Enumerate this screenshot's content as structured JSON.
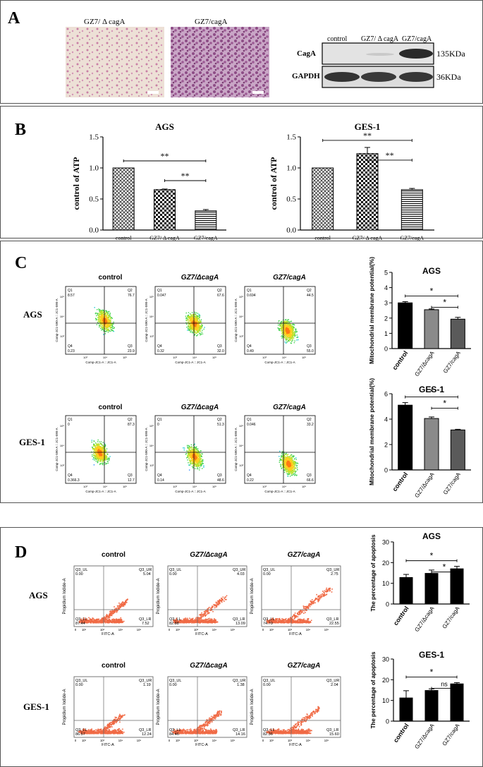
{
  "panelA": {
    "label": "A",
    "image_labels": [
      "GZ7/ Δ cagA",
      "GZ7/cagA"
    ],
    "blot": {
      "lanes": [
        "control",
        "GZ7/ Δ cagA",
        "GZ7/cagA"
      ],
      "rows": [
        {
          "name": "CagA",
          "size": "135KDa"
        },
        {
          "name": "GAPDH",
          "size": "36KDa"
        }
      ]
    }
  },
  "panelB": {
    "label": "B",
    "chart_data": [
      {
        "type": "bar",
        "title": "AGS",
        "ylabel": "control of ATP",
        "categories": [
          "control",
          "GZ7/ Δ cagA",
          "GZ7/cagA"
        ],
        "values": [
          1.0,
          0.65,
          0.31
        ],
        "errors": [
          0.0,
          0.01,
          0.02
        ],
        "ylim": [
          0,
          1.5
        ],
        "yticks": [
          "0.0",
          "0.5",
          "1.0",
          "1.5"
        ],
        "significance": [
          "**",
          "**"
        ]
      },
      {
        "type": "bar",
        "title": "GES-1",
        "ylabel": "control of ATP",
        "categories": [
          "control",
          "GZ7/ Δ cagA",
          "GZ7/cagA"
        ],
        "values": [
          1.0,
          1.23,
          0.65
        ],
        "errors": [
          0.0,
          0.1,
          0.02
        ],
        "ylim": [
          0,
          1.5
        ],
        "yticks": [
          "0.0",
          "0.5",
          "1.0",
          "1.5"
        ],
        "significance": [
          "**",
          "**"
        ]
      }
    ]
  },
  "panelC": {
    "label": "C",
    "col_titles": [
      "control",
      "GZ7/ΔcagA",
      "GZ7/cagA"
    ],
    "rows": [
      {
        "name": "AGS",
        "quadrants": [
          {
            "q1": "8.57",
            "q2": "76.7",
            "q3": "23.9",
            "q4": "0.23"
          },
          {
            "q1": "0.047",
            "q2": "67.6",
            "q3": "32.0",
            "q4": "0.32"
          },
          {
            "q1": "0.694",
            "q2": "44.5",
            "q3": "55.0",
            "q4": "0.49"
          }
        ]
      },
      {
        "name": "GES-1",
        "quadrants": [
          {
            "q1": "0",
            "q2": "87.3",
            "q3": "12.7",
            "q4": "0.366.3"
          },
          {
            "q1": "0",
            "q2": "51.3",
            "q3": "48.6",
            "q4": "0.14"
          },
          {
            "q1": "0.046",
            "q2": "33.2",
            "q3": "66.6",
            "q4": "0.22"
          }
        ]
      }
    ],
    "axis_x": "Comp-JC1-A :: JC1-A",
    "axis_y": "Comp-JC1-590-A :: JC1-590-A",
    "quad_names": [
      "Q1",
      "Q2",
      "Q3",
      "Q4"
    ],
    "chart_data": [
      {
        "type": "bar",
        "title": "AGS",
        "ylabel": "Mitochondrial membrane potential(%)",
        "categories": [
          "control",
          "GZ7/ΔcagA",
          "GZ7/cagA"
        ],
        "values": [
          3.0,
          2.55,
          1.93
        ],
        "errors": [
          0.08,
          0.05,
          0.12
        ],
        "ylim": [
          0,
          5
        ],
        "yticks": [
          "0",
          "1",
          "2",
          "3",
          "4",
          "5"
        ],
        "significance": [
          "*",
          "*"
        ],
        "colors": [
          "#000000",
          "#8a8a8a",
          "#5a5a5a"
        ]
      },
      {
        "type": "bar",
        "title": "GES-1",
        "ylabel": "Mitochondrial membrane potential(%)",
        "categories": [
          "control",
          "GZ7/ΔcagA",
          "GZ7/cagA"
        ],
        "values": [
          5.1,
          4.05,
          3.15
        ],
        "errors": [
          0.2,
          0.12,
          0.05
        ],
        "ylim": [
          0,
          6
        ],
        "yticks": [
          "0",
          "2",
          "4",
          "6"
        ],
        "significance": [
          "*",
          "*"
        ],
        "colors": [
          "#000000",
          "#8a8a8a",
          "#5a5a5a"
        ]
      }
    ]
  },
  "panelD": {
    "label": "D",
    "col_titles": [
      "control",
      "GZ7/ΔcagA",
      "GZ7/cagA"
    ],
    "rows": [
      {
        "name": "AGS",
        "quadrants": [
          {
            "ul": "0.00",
            "ur": "5.04",
            "ll": "87.44",
            "lr": "7.52"
          },
          {
            "ul": "0.00",
            "ur": "4.03",
            "ll": "82.88",
            "lr": "13.09"
          },
          {
            "ul": "0.00",
            "ur": "2.75",
            "ll": "74.70",
            "lr": "22.55"
          }
        ]
      },
      {
        "name": "GES-1",
        "quadrants": [
          {
            "ul": "0.00",
            "ur": "1.19",
            "ll": "86.57",
            "lr": "12.24"
          },
          {
            "ul": "0.00",
            "ur": "1.38",
            "ll": "84.46",
            "lr": "14.16"
          },
          {
            "ul": "0.00",
            "ur": "2.04",
            "ll": "82.36",
            "lr": "15.60"
          }
        ]
      }
    ],
    "axis_x": "FITC-A",
    "axis_y": "Propidium Iodide-A",
    "quad_names": [
      "Q3_UL",
      "Q3_UR",
      "Q3_LL",
      "Q3_LR"
    ],
    "chart_data": [
      {
        "type": "bar",
        "title": "AGS",
        "ylabel": "The percentage of apoptosis",
        "categories": [
          "control",
          "GZ7/ΔcagA",
          "GZ7/cagA"
        ],
        "values": [
          12.8,
          14.8,
          17.0
        ],
        "errors": [
          1.5,
          1.6,
          1.2
        ],
        "ylim": [
          0,
          30
        ],
        "yticks": [
          "0",
          "10",
          "20",
          "30"
        ],
        "significance": [
          "*",
          "*"
        ]
      },
      {
        "type": "bar",
        "title": "GES-1",
        "ylabel": "The percentage of apoptosis",
        "categories": [
          "control",
          "GZ7/ΔcagA",
          "GZ7/cagA"
        ],
        "values": [
          11.2,
          14.8,
          18.0
        ],
        "errors": [
          3.5,
          0.8,
          0.6
        ],
        "ylim": [
          0,
          30
        ],
        "yticks": [
          "0",
          "10",
          "20",
          "30"
        ],
        "significance": [
          "*",
          "ns"
        ]
      }
    ]
  }
}
